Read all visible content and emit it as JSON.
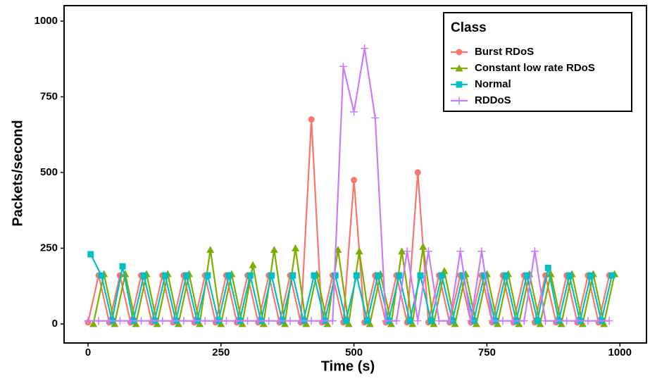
{
  "chart_data": {
    "type": "line",
    "x_label": "Time (s)",
    "y_label": "Packets/second",
    "legend_title": "Class",
    "legend_position": "top-right",
    "xlim": [
      -45,
      1050
    ],
    "ylim": [
      -63,
      1051
    ],
    "xticks": [
      0,
      250,
      500,
      750,
      1000
    ],
    "yticks": [
      0,
      250,
      500,
      750,
      1000
    ],
    "grid": false,
    "series": [
      {
        "name": "Burst RDoS",
        "color": "#F8766D",
        "marker": "circle",
        "x": [
          0,
          20,
          40,
          60,
          80,
          100,
          120,
          140,
          160,
          180,
          200,
          220,
          240,
          260,
          280,
          300,
          320,
          340,
          360,
          380,
          400,
          420,
          440,
          460,
          480,
          500,
          520,
          540,
          560,
          580,
          600,
          620,
          640,
          660,
          680,
          700,
          720,
          740,
          760,
          780,
          800,
          820,
          840,
          860,
          880,
          900,
          920,
          940,
          960,
          980
        ],
        "values": [
          5,
          160,
          5,
          160,
          5,
          160,
          5,
          160,
          5,
          160,
          5,
          160,
          5,
          160,
          5,
          160,
          5,
          160,
          5,
          160,
          5,
          675,
          5,
          160,
          5,
          475,
          5,
          160,
          5,
          160,
          5,
          500,
          5,
          160,
          5,
          160,
          5,
          160,
          5,
          160,
          5,
          160,
          5,
          160,
          5,
          160,
          5,
          160,
          5,
          160
        ]
      },
      {
        "name": "Constant low rate RDoS",
        "color": "#7CAE00",
        "marker": "triangle",
        "x": [
          10,
          30,
          50,
          70,
          90,
          110,
          130,
          150,
          170,
          190,
          210,
          230,
          250,
          270,
          290,
          310,
          330,
          350,
          370,
          390,
          410,
          430,
          450,
          470,
          490,
          510,
          530,
          550,
          570,
          590,
          610,
          630,
          650,
          670,
          690,
          710,
          730,
          750,
          770,
          790,
          810,
          830,
          850,
          870,
          890,
          910,
          930,
          950,
          970,
          990
        ],
        "values": [
          0,
          165,
          0,
          165,
          0,
          165,
          0,
          165,
          0,
          165,
          0,
          245,
          0,
          165,
          0,
          195,
          0,
          245,
          0,
          250,
          0,
          165,
          0,
          245,
          0,
          240,
          0,
          165,
          0,
          240,
          0,
          255,
          0,
          175,
          0,
          165,
          0,
          165,
          0,
          165,
          0,
          165,
          0,
          165,
          0,
          165,
          0,
          165,
          0,
          165
        ]
      },
      {
        "name": "Normal",
        "color": "#00BFC4",
        "marker": "square",
        "x": [
          5,
          25,
          45,
          65,
          85,
          105,
          125,
          145,
          165,
          185,
          205,
          225,
          245,
          265,
          285,
          305,
          325,
          345,
          365,
          385,
          405,
          425,
          445,
          465,
          485,
          505,
          525,
          545,
          565,
          585,
          605,
          625,
          645,
          665,
          685,
          705,
          725,
          745,
          765,
          785,
          805,
          825,
          845,
          865,
          885,
          905,
          925,
          945,
          965,
          985
        ],
        "values": [
          230,
          160,
          10,
          190,
          10,
          160,
          10,
          160,
          10,
          160,
          10,
          160,
          10,
          160,
          10,
          160,
          10,
          160,
          10,
          160,
          10,
          160,
          10,
          160,
          10,
          160,
          10,
          160,
          10,
          160,
          10,
          160,
          10,
          160,
          10,
          160,
          10,
          160,
          10,
          160,
          10,
          160,
          10,
          185,
          10,
          160,
          10,
          160,
          10,
          160
        ]
      },
      {
        "name": "RDDoS",
        "color": "#C77CFF",
        "marker": "plus",
        "x": [
          0,
          20,
          40,
          60,
          80,
          100,
          120,
          140,
          160,
          180,
          200,
          220,
          240,
          260,
          280,
          300,
          320,
          340,
          360,
          380,
          400,
          420,
          440,
          460,
          480,
          500,
          520,
          540,
          560,
          580,
          600,
          620,
          640,
          660,
          680,
          700,
          720,
          740,
          760,
          780,
          800,
          820,
          840,
          860,
          880,
          900,
          920,
          940,
          960,
          980
        ],
        "values": [
          10,
          10,
          10,
          10,
          10,
          10,
          10,
          10,
          10,
          10,
          10,
          10,
          10,
          10,
          10,
          10,
          10,
          10,
          10,
          10,
          10,
          10,
          10,
          10,
          850,
          700,
          910,
          680,
          10,
          10,
          240,
          10,
          240,
          10,
          10,
          240,
          10,
          240,
          10,
          10,
          10,
          10,
          240,
          10,
          10,
          10,
          10,
          10,
          10,
          10
        ]
      }
    ]
  }
}
